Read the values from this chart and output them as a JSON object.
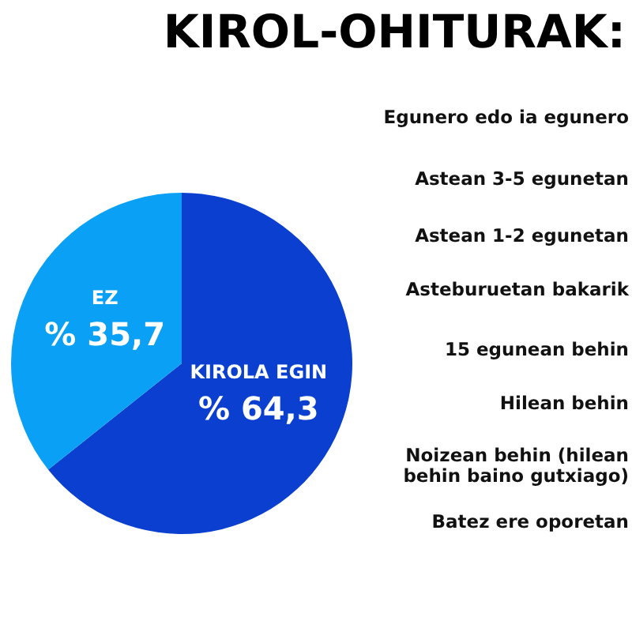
{
  "chart_data": {
    "type": "pie",
    "title": "KIROL-OHITURAK:",
    "categories": [
      "KIROLA EGIN",
      "EZ"
    ],
    "values": [
      64.3,
      35.7
    ],
    "value_labels": [
      "% 64,3",
      "% 35,7"
    ],
    "colors": [
      "#0a3fcf",
      "#0aa0f5"
    ],
    "annotations": [
      "Egunero edo ia egunero",
      "Astean 3-5 egunetan",
      "Astean 1-2 egunetan",
      "Asteburuetan bakarik",
      "15 egunean behin",
      "Hilean behin",
      "Noizean behin (hilean\nbehin baino gutxiago)",
      "Batez ere oporetan"
    ]
  }
}
